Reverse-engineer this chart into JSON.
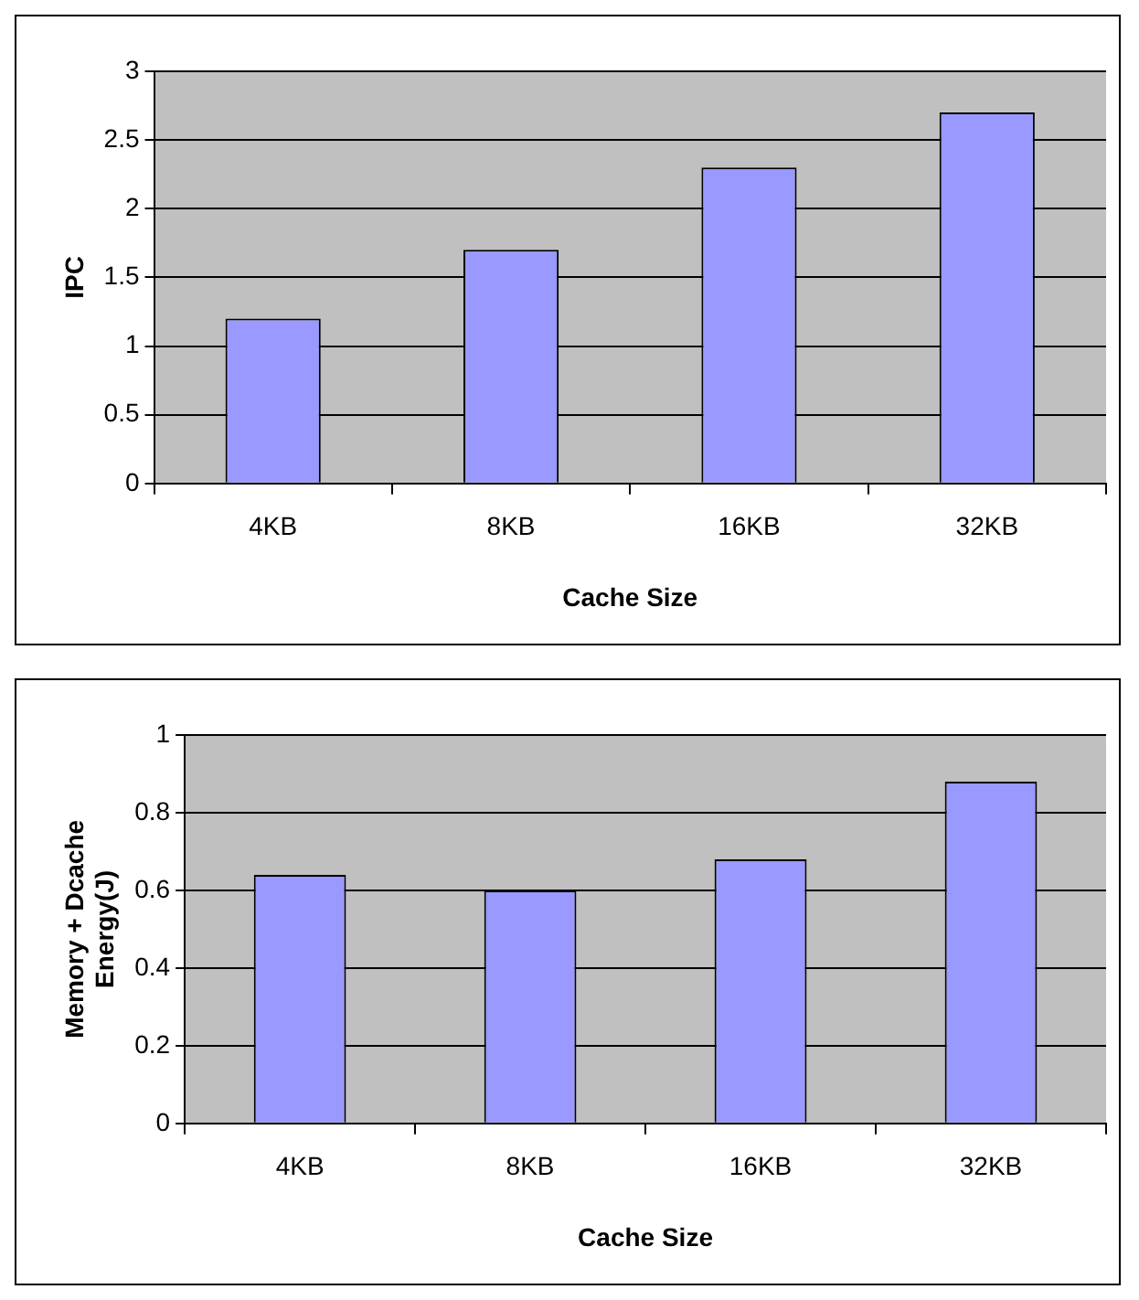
{
  "chart_data": [
    {
      "type": "bar",
      "categories": [
        "4KB",
        "8KB",
        "16KB",
        "32KB"
      ],
      "values": [
        1.2,
        1.7,
        2.3,
        2.7
      ],
      "color": "#9999ff",
      "xlabel": "Cache Size",
      "ylabel": "IPC",
      "ylim": [
        0,
        3
      ],
      "yticks": [
        0,
        0.5,
        1,
        1.5,
        2,
        2.5,
        3
      ],
      "grid": "y",
      "legend": false
    },
    {
      "type": "bar",
      "categories": [
        "4KB",
        "8KB",
        "16KB",
        "32KB"
      ],
      "values": [
        0.64,
        0.6,
        0.68,
        0.88
      ],
      "color": "#9999ff",
      "xlabel": "Cache Size",
      "ylabel": "Memory + Dcache Energy(J)",
      "ylim": [
        0,
        1
      ],
      "yticks": [
        0,
        0.2,
        0.4,
        0.6,
        0.8,
        1
      ],
      "grid": "y",
      "legend": false
    }
  ]
}
